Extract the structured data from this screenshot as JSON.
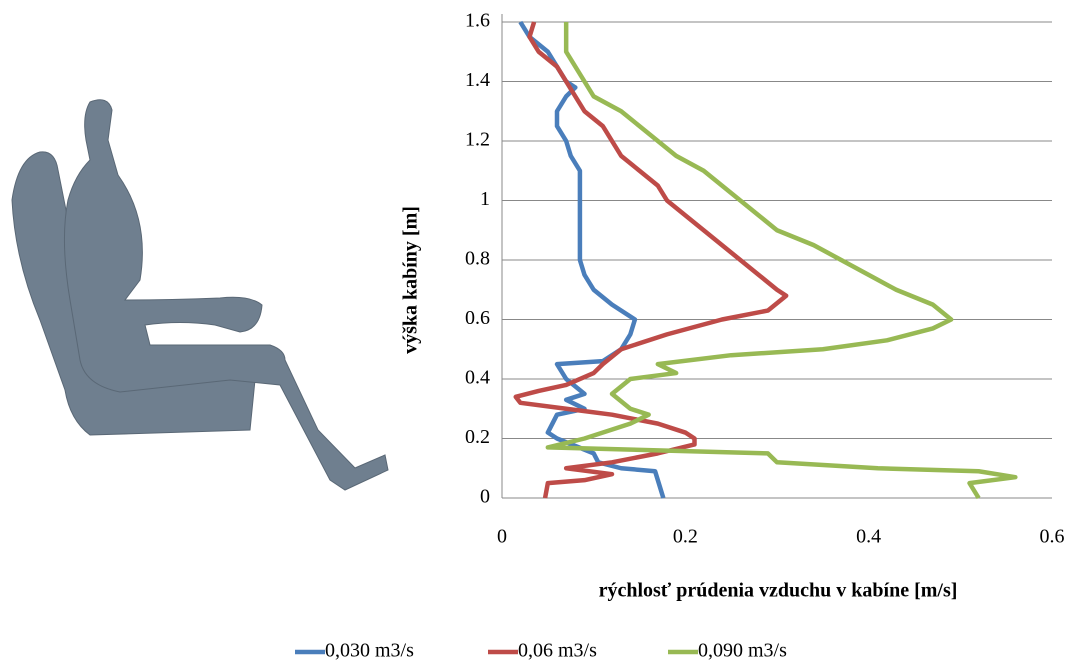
{
  "chart_data": {
    "type": "line",
    "xlabel": "rýchlosť prúdenia vzduchu v kabíne [m/s]",
    "ylabel": "výška kabíny [m]",
    "xlim": [
      0,
      0.6
    ],
    "xticks": [
      0,
      0.2,
      0.4,
      0.6
    ],
    "ylim": [
      0,
      1.6
    ],
    "yticks": [
      0,
      0.2,
      0.4,
      0.6,
      0.8,
      1,
      1.2,
      1.4,
      1.6
    ],
    "grid": true,
    "legend": "bottom",
    "series": [
      {
        "name": "0,030 m3/s",
        "color": "#4a7ebb",
        "x": [
          0.176,
          0.172,
          0.167,
          0.13,
          0.105,
          0.1,
          0.06,
          0.05,
          0.06,
          0.09,
          0.07,
          0.09,
          0.07,
          0.06,
          0.11,
          0.13,
          0.14,
          0.145,
          0.12,
          0.1,
          0.09,
          0.085,
          0.085,
          0.085,
          0.085,
          0.075,
          0.07,
          0.06,
          0.06,
          0.07,
          0.08,
          0.07,
          0.06,
          0.05,
          0.03,
          0.02
        ],
        "values": [
          0,
          0.04,
          0.09,
          0.1,
          0.12,
          0.15,
          0.2,
          0.22,
          0.28,
          0.3,
          0.33,
          0.35,
          0.4,
          0.45,
          0.46,
          0.5,
          0.55,
          0.6,
          0.65,
          0.7,
          0.75,
          0.8,
          0.9,
          1.0,
          1.1,
          1.15,
          1.2,
          1.25,
          1.3,
          1.35,
          1.38,
          1.4,
          1.45,
          1.5,
          1.55,
          1.6
        ]
      },
      {
        "name": "0,06 m3/s",
        "color": "#be4b48",
        "x": [
          0.047,
          0.05,
          0.09,
          0.12,
          0.07,
          0.12,
          0.17,
          0.21,
          0.21,
          0.2,
          0.17,
          0.12,
          0.07,
          0.02,
          0.015,
          0.04,
          0.07,
          0.1,
          0.11,
          0.13,
          0.18,
          0.24,
          0.29,
          0.31,
          0.3,
          0.28,
          0.26,
          0.24,
          0.22,
          0.2,
          0.18,
          0.17,
          0.15,
          0.13,
          0.12,
          0.11,
          0.09,
          0.08,
          0.07,
          0.06,
          0.04,
          0.03,
          0.035
        ],
        "values": [
          0,
          0.05,
          0.06,
          0.08,
          0.1,
          0.12,
          0.15,
          0.18,
          0.2,
          0.22,
          0.25,
          0.28,
          0.3,
          0.32,
          0.34,
          0.36,
          0.38,
          0.42,
          0.45,
          0.5,
          0.55,
          0.6,
          0.63,
          0.68,
          0.7,
          0.75,
          0.8,
          0.85,
          0.9,
          0.95,
          1.0,
          1.05,
          1.1,
          1.15,
          1.2,
          1.25,
          1.3,
          1.35,
          1.4,
          1.45,
          1.5,
          1.55,
          1.6
        ]
      },
      {
        "name": "0,090 m3/s",
        "color": "#98b954",
        "x": [
          0.52,
          0.51,
          0.56,
          0.52,
          0.41,
          0.3,
          0.29,
          0.05,
          0.09,
          0.14,
          0.16,
          0.14,
          0.12,
          0.14,
          0.19,
          0.17,
          0.25,
          0.35,
          0.42,
          0.47,
          0.49,
          0.47,
          0.43,
          0.4,
          0.37,
          0.34,
          0.3,
          0.28,
          0.26,
          0.24,
          0.22,
          0.19,
          0.17,
          0.15,
          0.13,
          0.1,
          0.09,
          0.08,
          0.07,
          0.07,
          0.07
        ],
        "values": [
          0,
          0.05,
          0.07,
          0.09,
          0.1,
          0.12,
          0.15,
          0.17,
          0.2,
          0.25,
          0.28,
          0.3,
          0.35,
          0.4,
          0.42,
          0.45,
          0.48,
          0.5,
          0.53,
          0.57,
          0.6,
          0.65,
          0.7,
          0.75,
          0.8,
          0.85,
          0.9,
          0.95,
          1.0,
          1.05,
          1.1,
          1.15,
          1.2,
          1.25,
          1.3,
          1.35,
          1.4,
          1.45,
          1.5,
          1.55,
          1.6
        ]
      }
    ]
  }
}
